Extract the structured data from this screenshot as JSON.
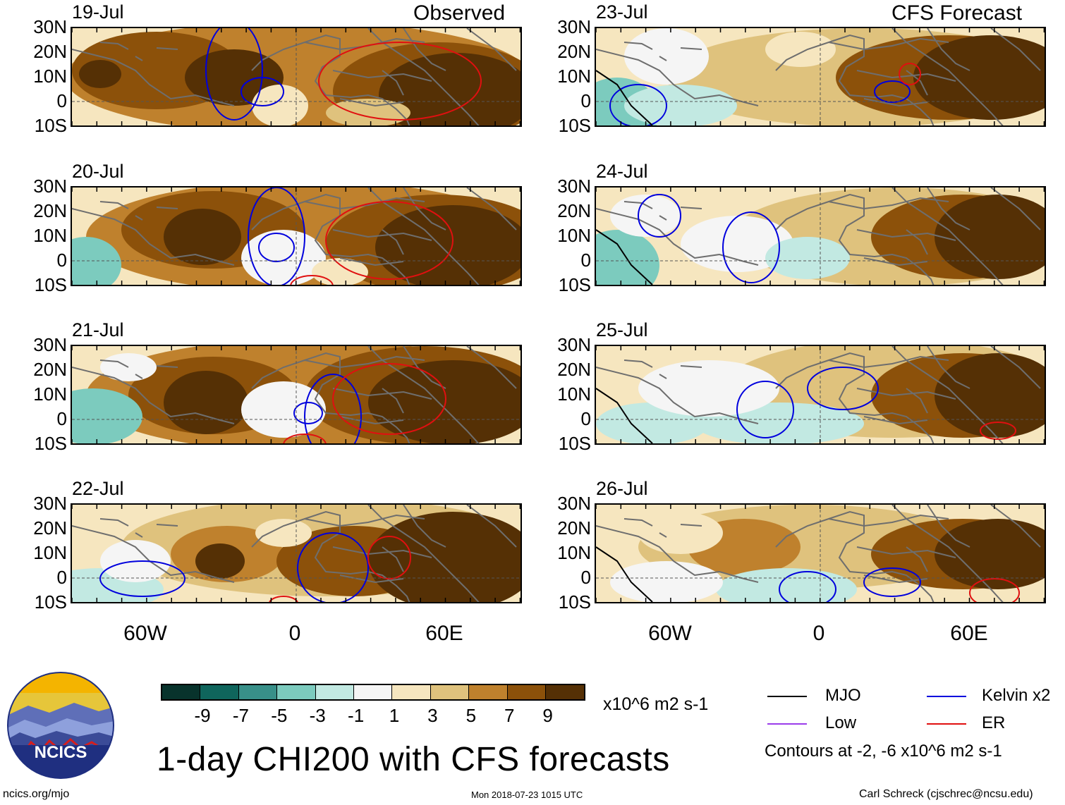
{
  "header": {
    "left_label": "Observed",
    "right_label": "CFS Forecast"
  },
  "latitude_labels": [
    "30N",
    "20N",
    "10N",
    "0",
    "10S"
  ],
  "longitude_labels": [
    "60W",
    "0",
    "60E"
  ],
  "panels_observed": [
    {
      "date": "19-Jul"
    },
    {
      "date": "20-Jul"
    },
    {
      "date": "21-Jul"
    },
    {
      "date": "22-Jul"
    }
  ],
  "panels_forecast": [
    {
      "date": "23-Jul"
    },
    {
      "date": "24-Jul"
    },
    {
      "date": "25-Jul"
    },
    {
      "date": "26-Jul"
    }
  ],
  "colorbar": {
    "colors": [
      "#08332c",
      "#0f655c",
      "#389089",
      "#7ccbbe",
      "#c2e9e2",
      "#f5f5f5",
      "#f6e6bf",
      "#dfc27d",
      "#bf812d",
      "#8c510a",
      "#553005"
    ],
    "tick_labels": [
      "-9",
      "-7",
      "-5",
      "-3",
      "-1",
      "1",
      "3",
      "5",
      "7",
      "9"
    ],
    "units": "x10^6 m2 s-1"
  },
  "title": "1-day CHI200 with CFS forecasts",
  "legend": {
    "mjo": {
      "label": "MJO",
      "color": "#000000"
    },
    "kelvin": {
      "label": "Kelvin x2",
      "color": "#0000dd"
    },
    "low": {
      "label": "Low",
      "color": "#9b3dea"
    },
    "er": {
      "label": "ER",
      "color": "#e01010"
    },
    "note": "Contours at -2, -6 x10^6 m2 s-1"
  },
  "footer": {
    "logo_text": "NCICS",
    "website": "ncics.org/mjo",
    "timestamp": "Mon 2018-07-23 1015 UTC",
    "credit": "Carl Schreck (cjschrec@ncsu.edu)"
  }
}
